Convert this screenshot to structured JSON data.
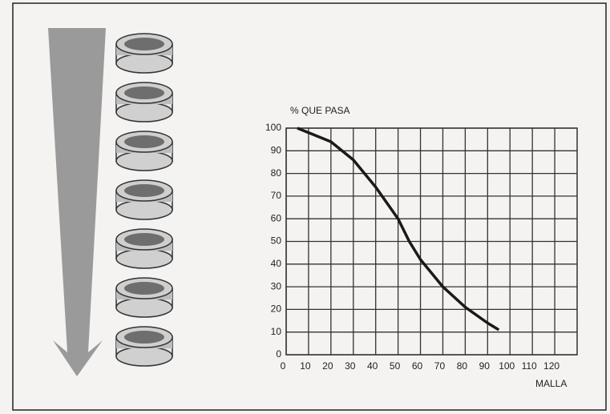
{
  "chart_data": {
    "type": "line",
    "y_label": "% QUE PASA",
    "x_label": "MALLA",
    "x": [
      5,
      10,
      20,
      30,
      40,
      50,
      55,
      60,
      70,
      80,
      90,
      95
    ],
    "series": [
      {
        "color": "#1a1a1a",
        "values": [
          100,
          98,
          94,
          86,
          74,
          60,
          50,
          42,
          30,
          21,
          14,
          11
        ]
      }
    ],
    "xlim": [
      0,
      130
    ],
    "xticks": [
      0,
      10,
      20,
      30,
      40,
      50,
      60,
      70,
      80,
      90,
      100,
      110,
      120
    ],
    "ylim": [
      0,
      100
    ],
    "yticks": [
      0,
      10,
      20,
      30,
      40,
      50,
      60,
      70,
      80,
      90,
      100
    ],
    "grid": true
  }
}
